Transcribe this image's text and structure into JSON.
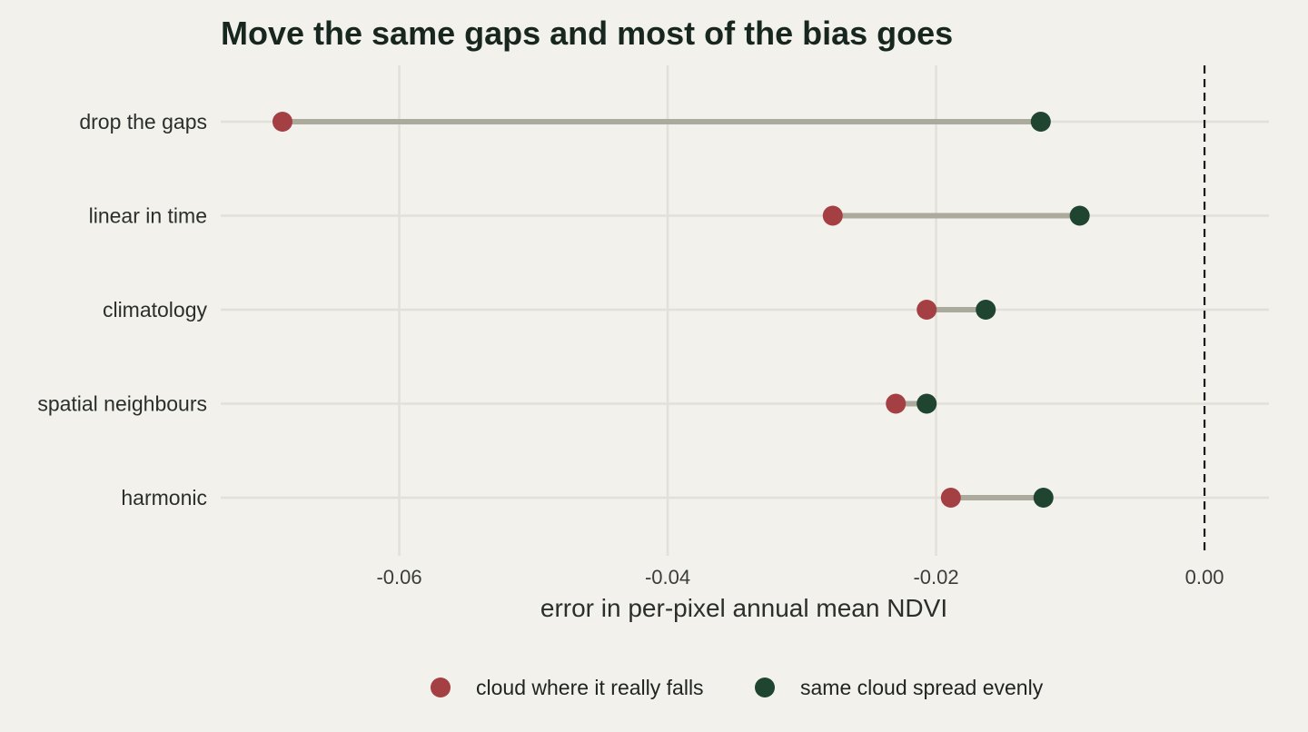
{
  "chart_data": {
    "type": "dumbbell",
    "title": "Move the same gaps and most of the bias goes",
    "xlabel": "error in per-pixel annual mean NDVI",
    "ylabel": "",
    "xlim": [
      -0.0733,
      0.0048
    ],
    "x_ticks": [
      -0.06,
      -0.04,
      -0.02,
      0.0
    ],
    "x_tick_labels": [
      "-0.06",
      "-0.04",
      "-0.02",
      "0.00"
    ],
    "reference_line": {
      "x": 0.0,
      "style": "dashed"
    },
    "grid": true,
    "legend_position": "bottom",
    "categories": [
      "drop the gaps",
      "linear in time",
      "climatology",
      "spatial neighbours",
      "harmonic"
    ],
    "series": [
      {
        "name": "cloud where it really falls",
        "color": "#a44043",
        "values": [
          -0.0687,
          -0.0277,
          -0.0207,
          -0.023,
          -0.0189
        ]
      },
      {
        "name": "same cloud spread evenly",
        "color": "#1f4531",
        "values": [
          -0.0122,
          -0.0093,
          -0.0163,
          -0.0207,
          -0.012
        ]
      }
    ],
    "colors": {
      "connector": "#aca99d",
      "gridline": "#e2e0d9",
      "reference": "#1a1a1a",
      "background": "#f2f1ec"
    }
  }
}
